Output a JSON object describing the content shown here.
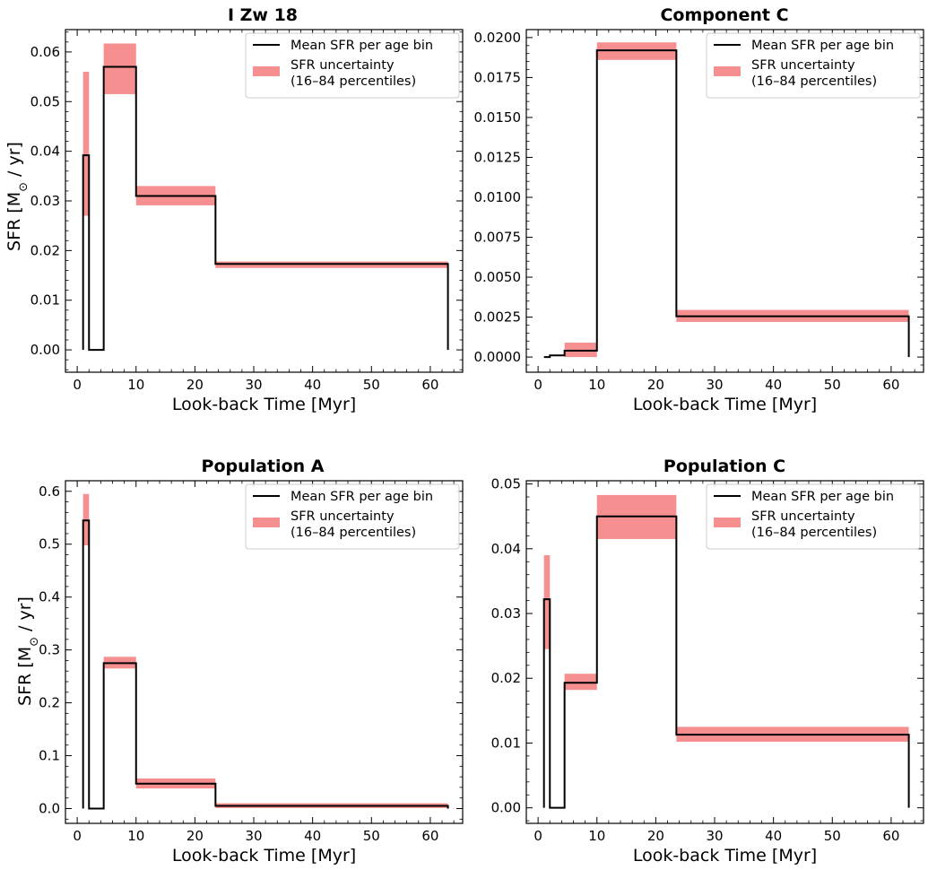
{
  "figure": {
    "panels": [
      {
        "id": "izw18",
        "title": "I Zw 18",
        "ylabel": "SFR [M",
        "ylabel_unit": " / yr]",
        "show_ylabel": true
      },
      {
        "id": "compC",
        "title": "Component C",
        "ylabel": "",
        "ylabel_unit": "",
        "show_ylabel": false
      },
      {
        "id": "popA",
        "title": "Population A",
        "ylabel": "SFR [M",
        "ylabel_unit": " / yr]",
        "show_ylabel": true
      },
      {
        "id": "popC",
        "title": "Population C",
        "ylabel": "",
        "ylabel_unit": "",
        "show_ylabel": false
      }
    ],
    "legend": {
      "mean_label": "Mean SFR per age bin",
      "band_label_line1": "SFR uncertainty",
      "band_label_line2": "(16–84 percentiles)"
    },
    "colors": {
      "line": "#000000",
      "band": "#f47c7c"
    }
  },
  "chart_data": [
    {
      "type": "line",
      "title": "I Zw 18",
      "xlabel": "Look-back Time [Myr]",
      "ylabel": "SFR [M⊙ / yr]",
      "xlim": [
        -2,
        65.5
      ],
      "ylim": [
        -0.0045,
        0.0645
      ],
      "xticks": [
        0,
        10,
        20,
        30,
        40,
        50,
        60
      ],
      "yticks": [
        0.0,
        0.01,
        0.02,
        0.03,
        0.04,
        0.05,
        0.06
      ],
      "ytick_labels": [
        "0.00",
        "0.01",
        "0.02",
        "0.03",
        "0.04",
        "0.05",
        "0.06"
      ],
      "grid": false,
      "legend_position": "top-right",
      "bin_edges": [
        1.0,
        2.0,
        4.5,
        10.0,
        23.5,
        63.0
      ],
      "series": [
        {
          "name": "Mean SFR per age bin",
          "values": [
            0.0392,
            0.0,
            0.057,
            0.031,
            0.0173
          ]
        },
        {
          "name": "SFR uncertainty (16–84 percentiles)",
          "lower": [
            0.027,
            0.0,
            0.0515,
            0.0291,
            0.0165
          ],
          "upper": [
            0.056,
            0.0,
            0.0617,
            0.033,
            0.0178
          ]
        }
      ]
    },
    {
      "type": "line",
      "title": "Component C",
      "xlabel": "Look-back Time [Myr]",
      "ylabel": "",
      "xlim": [
        -2,
        65.5
      ],
      "ylim": [
        -0.00095,
        0.0205
      ],
      "xticks": [
        0,
        10,
        20,
        30,
        40,
        50,
        60
      ],
      "yticks": [
        0.0,
        0.0025,
        0.005,
        0.0075,
        0.01,
        0.0125,
        0.015,
        0.0175,
        0.02
      ],
      "ytick_labels": [
        "0.0000",
        "0.0025",
        "0.0050",
        "0.0075",
        "0.0100",
        "0.0125",
        "0.0150",
        "0.0175",
        "0.0200"
      ],
      "grid": false,
      "legend_position": "top-right",
      "bin_edges": [
        1.0,
        2.0,
        4.5,
        10.0,
        23.5,
        63.0
      ],
      "series": [
        {
          "name": "Mean SFR per age bin",
          "values": [
            0.0,
            0.0001,
            0.0004,
            0.0192,
            0.00255
          ]
        },
        {
          "name": "SFR uncertainty (16–84 percentiles)",
          "lower": [
            0.0,
            0.0001,
            0.0,
            0.0186,
            0.0022
          ],
          "upper": [
            0.0,
            0.0001,
            0.0009,
            0.0197,
            0.00295
          ]
        }
      ]
    },
    {
      "type": "line",
      "title": "Population A",
      "xlabel": "Look-back Time [Myr]",
      "ylabel": "SFR [M⊙ / yr]",
      "xlim": [
        -2,
        65.5
      ],
      "ylim": [
        -0.028,
        0.62
      ],
      "xticks": [
        0,
        10,
        20,
        30,
        40,
        50,
        60
      ],
      "yticks": [
        0.0,
        0.1,
        0.2,
        0.3,
        0.4,
        0.5,
        0.6
      ],
      "ytick_labels": [
        "0.0",
        "0.1",
        "0.2",
        "0.3",
        "0.4",
        "0.5",
        "0.6"
      ],
      "grid": false,
      "legend_position": "top-right",
      "bin_edges": [
        1.0,
        2.0,
        4.5,
        10.0,
        23.5,
        63.0
      ],
      "series": [
        {
          "name": "Mean SFR per age bin",
          "values": [
            0.545,
            0.0,
            0.275,
            0.047,
            0.005
          ]
        },
        {
          "name": "SFR uncertainty (16–84 percentiles)",
          "lower": [
            0.498,
            0.0,
            0.265,
            0.038,
            0.001
          ],
          "upper": [
            0.595,
            0.0,
            0.287,
            0.057,
            0.01
          ]
        }
      ]
    },
    {
      "type": "line",
      "title": "Population C",
      "xlabel": "Look-back Time [Myr]",
      "ylabel": "",
      "xlim": [
        -2,
        65.5
      ],
      "ylim": [
        -0.0024,
        0.0505
      ],
      "xticks": [
        0,
        10,
        20,
        30,
        40,
        50,
        60
      ],
      "yticks": [
        0.0,
        0.01,
        0.02,
        0.03,
        0.04,
        0.05
      ],
      "ytick_labels": [
        "0.00",
        "0.01",
        "0.02",
        "0.03",
        "0.04",
        "0.05"
      ],
      "grid": false,
      "legend_position": "top-right",
      "bin_edges": [
        1.0,
        2.0,
        4.5,
        10.0,
        23.5,
        63.0
      ],
      "series": [
        {
          "name": "Mean SFR per age bin",
          "values": [
            0.0322,
            0.0,
            0.0193,
            0.045,
            0.0113
          ]
        },
        {
          "name": "SFR uncertainty (16–84 percentiles)",
          "lower": [
            0.0245,
            0.0,
            0.0182,
            0.0415,
            0.0102
          ],
          "upper": [
            0.039,
            0.0,
            0.0207,
            0.0483,
            0.0125
          ]
        }
      ]
    }
  ]
}
